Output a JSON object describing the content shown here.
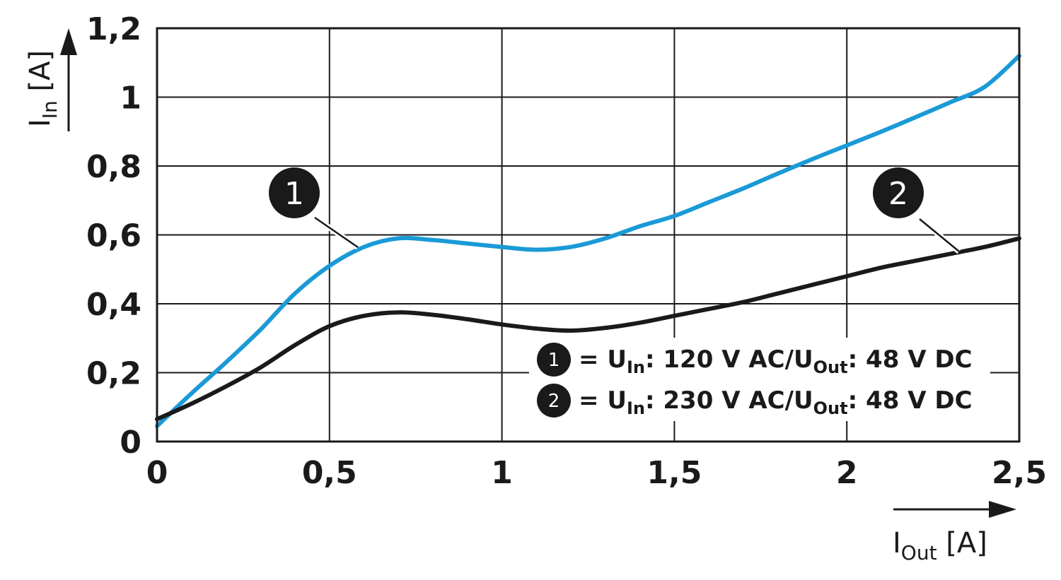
{
  "chart_data": {
    "type": "line",
    "xlabel": {
      "main": "I",
      "sub": "Out",
      "unit": " [A]"
    },
    "ylabel": {
      "main": "I",
      "sub": "In",
      "unit": " [A]"
    },
    "xlim": [
      0,
      2.5
    ],
    "ylim": [
      0,
      1.2
    ],
    "x_ticks": [
      {
        "value": 0,
        "label": "0"
      },
      {
        "value": 0.5,
        "label": "0,5"
      },
      {
        "value": 1,
        "label": "1"
      },
      {
        "value": 1.5,
        "label": "1,5"
      },
      {
        "value": 2,
        "label": "2"
      },
      {
        "value": 2.5,
        "label": "2,5"
      }
    ],
    "y_ticks": [
      {
        "value": 0,
        "label": "0"
      },
      {
        "value": 0.2,
        "label": "0,2"
      },
      {
        "value": 0.4,
        "label": "0,4"
      },
      {
        "value": 0.6,
        "label": "0,6"
      },
      {
        "value": 0.8,
        "label": "0,8"
      },
      {
        "value": 1,
        "label": "1"
      },
      {
        "value": 1.2,
        "label": "1,2"
      }
    ],
    "grid": true,
    "legend_position": "lower-right inside plot",
    "series": [
      {
        "marker": "1",
        "color": "#1a9ad6",
        "legend": {
          "prefix": "= U",
          "sub1": "In",
          "mid": ": 120 V AC/U",
          "sub2": "Out",
          "suffix": ": 48 V DC"
        },
        "x": [
          0,
          0.1,
          0.2,
          0.3,
          0.4,
          0.5,
          0.6,
          0.7,
          0.8,
          0.9,
          1.0,
          1.1,
          1.2,
          1.3,
          1.4,
          1.5,
          1.6,
          1.7,
          1.8,
          1.9,
          2.0,
          2.1,
          2.2,
          2.3,
          2.4,
          2.5
        ],
        "y": [
          0.045,
          0.14,
          0.23,
          0.325,
          0.43,
          0.51,
          0.565,
          0.59,
          0.585,
          0.575,
          0.565,
          0.557,
          0.565,
          0.59,
          0.625,
          0.655,
          0.695,
          0.735,
          0.778,
          0.82,
          0.86,
          0.9,
          0.942,
          0.985,
          1.03,
          1.12
        ]
      },
      {
        "marker": "2",
        "color": "#1a1a1a",
        "legend": {
          "prefix": "= U",
          "sub1": "In",
          "mid": ": 230 V AC/U",
          "sub2": "Out",
          "suffix": ": 48 V DC"
        },
        "x": [
          0,
          0.1,
          0.2,
          0.3,
          0.4,
          0.5,
          0.6,
          0.7,
          0.8,
          0.9,
          1.0,
          1.1,
          1.2,
          1.3,
          1.4,
          1.5,
          1.6,
          1.7,
          1.8,
          1.9,
          2.0,
          2.1,
          2.2,
          2.3,
          2.4,
          2.5
        ],
        "y": [
          0.065,
          0.11,
          0.16,
          0.215,
          0.28,
          0.335,
          0.365,
          0.375,
          0.368,
          0.355,
          0.34,
          0.328,
          0.322,
          0.33,
          0.345,
          0.365,
          0.385,
          0.405,
          0.43,
          0.455,
          0.48,
          0.505,
          0.525,
          0.545,
          0.565,
          0.59
        ]
      }
    ]
  }
}
